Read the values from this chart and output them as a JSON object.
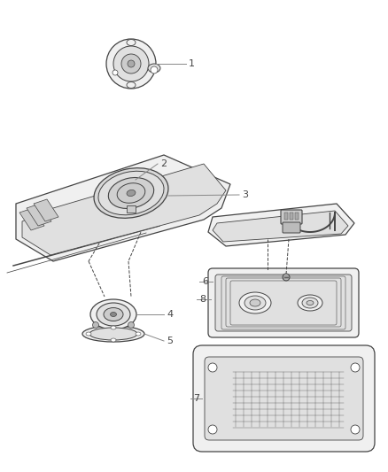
{
  "background_color": "#ffffff",
  "line_color": "#444444",
  "fill_light": "#f0f0f0",
  "fill_mid": "#e0e0e0",
  "fill_dark": "#cccccc",
  "label_line_color": "#888888",
  "text_color": "#444444",
  "figsize": [
    4.38,
    5.33
  ],
  "dpi": 100
}
